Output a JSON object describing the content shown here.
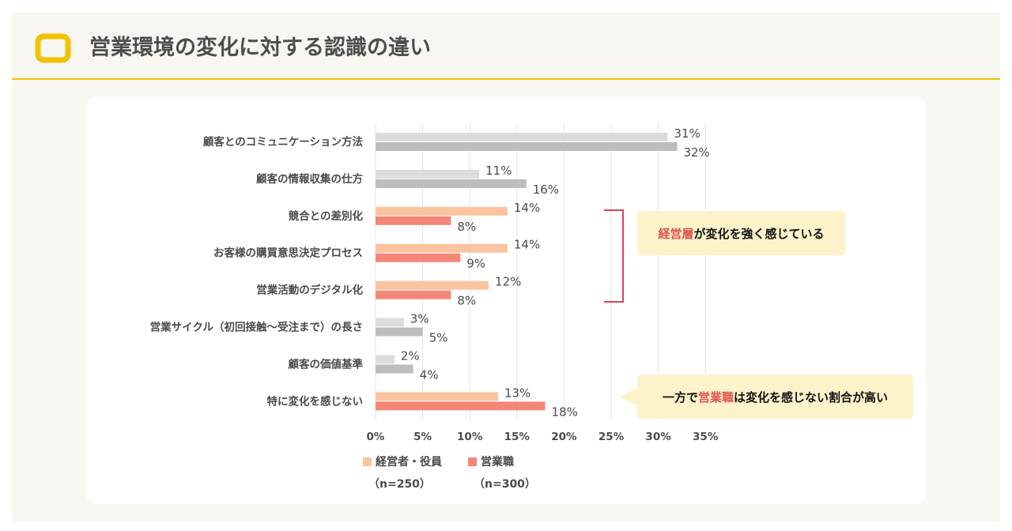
{
  "page": {
    "title": "営業環境の変化に対する認識の違い"
  },
  "colors": {
    "accent": "#f2c200",
    "executive": "#fbc49e",
    "sales": "#f48677",
    "exec_neutral": "#dcdcdc",
    "sales_neutral": "#bdbdbd",
    "highlight": "#e0504f",
    "callout_bg": "#fdf3cb"
  },
  "callouts": {
    "c1": {
      "highlight": "経営層",
      "rest": "が変化を強く感じている"
    },
    "c2": {
      "prefix": "一方で",
      "highlight": "営業職",
      "rest": "は変化を感じない割合が高い"
    }
  },
  "legend": {
    "executive": {
      "label": "経営者・役員",
      "n": "（n=250）"
    },
    "sales": {
      "label": "営業職",
      "n": "（n=300）"
    }
  },
  "chart_data": {
    "type": "bar",
    "orientation": "horizontal",
    "title": "営業環境の変化に対する認識の違い",
    "xlabel": "",
    "ylabel": "",
    "xlim": [
      0,
      35
    ],
    "ticks": [
      "0%",
      "5%",
      "10%",
      "15%",
      "20%",
      "25%",
      "30%",
      "35%"
    ],
    "tick_values": [
      0,
      5,
      10,
      15,
      20,
      25,
      30,
      35
    ],
    "grid": true,
    "legend_position": "bottom-left",
    "categories": [
      "顧客とのコミュニケーション方法",
      "顧客の情報収集の仕方",
      "競合との差別化",
      "お客様の購買意思決定プロセス",
      "営業活動のデジタル化",
      "営業サイクル（初回接触〜受注まで）の長さ",
      "顧客の価値基準",
      "特に変化を感じない"
    ],
    "highlighted": [
      false,
      false,
      true,
      true,
      true,
      false,
      false,
      true
    ],
    "series": [
      {
        "name": "経営者・役員",
        "values": [
          31,
          11,
          14,
          14,
          12,
          3,
          2,
          13
        ],
        "labels": [
          "31%",
          "11%",
          "14%",
          "14%",
          "12%",
          "3%",
          "2%",
          "13%"
        ]
      },
      {
        "name": "営業職",
        "values": [
          32,
          16,
          8,
          9,
          8,
          5,
          4,
          18
        ],
        "labels": [
          "32%",
          "16%",
          "8%",
          "9%",
          "8%",
          "5%",
          "4%",
          "18%"
        ]
      }
    ]
  }
}
